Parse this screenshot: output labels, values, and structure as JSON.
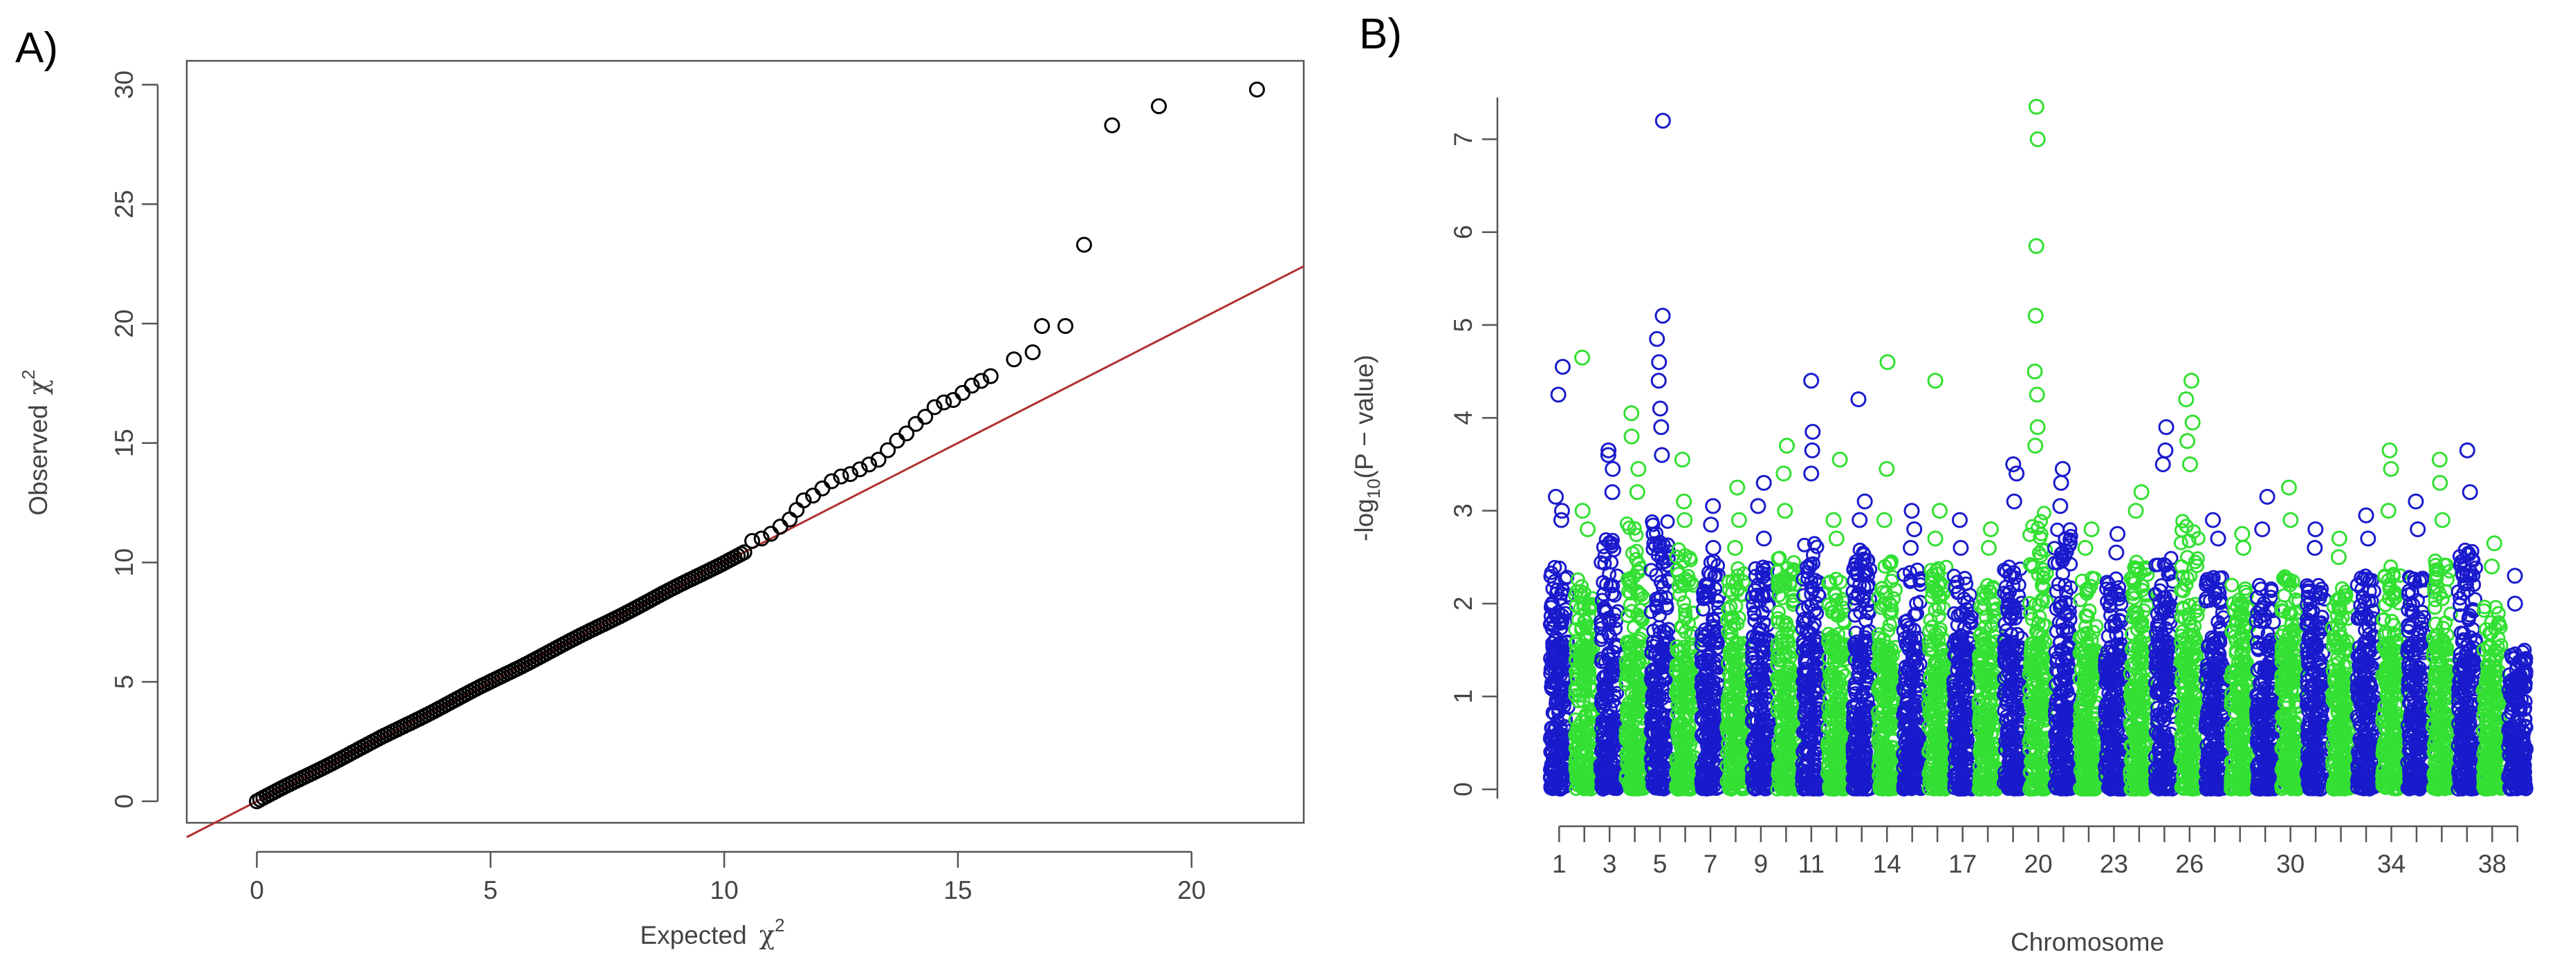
{
  "chart_data": [
    {
      "panel": "A)",
      "type": "scatter",
      "title": "",
      "xlabel": "Expected",
      "ylabel": "Observed",
      "symbol": "χ",
      "superscript": "2",
      "xlim": [
        -1.5,
        22.4
      ],
      "ylim": [
        -0.9,
        31.0
      ],
      "x_ticks": [
        0,
        5,
        10,
        15,
        20
      ],
      "y_ticks": [
        0,
        5,
        10,
        15,
        20,
        25,
        30
      ],
      "reference_line": {
        "slope": 1,
        "intercept": 0,
        "color": "#b03030"
      },
      "dense_range": [
        0,
        10.5
      ],
      "outliers": [
        [
          10.6,
          10.9
        ],
        [
          10.8,
          11.0
        ],
        [
          11.0,
          11.2
        ],
        [
          11.2,
          11.5
        ],
        [
          11.4,
          11.8
        ],
        [
          11.55,
          12.2
        ],
        [
          11.7,
          12.6
        ],
        [
          11.9,
          12.8
        ],
        [
          12.1,
          13.1
        ],
        [
          12.3,
          13.4
        ],
        [
          12.5,
          13.6
        ],
        [
          12.7,
          13.7
        ],
        [
          12.9,
          13.9
        ],
        [
          13.1,
          14.1
        ],
        [
          13.3,
          14.3
        ],
        [
          13.5,
          14.7
        ],
        [
          13.7,
          15.1
        ],
        [
          13.9,
          15.4
        ],
        [
          14.1,
          15.8
        ],
        [
          14.3,
          16.1
        ],
        [
          14.5,
          16.5
        ],
        [
          14.7,
          16.7
        ],
        [
          14.9,
          16.8
        ],
        [
          15.1,
          17.1
        ],
        [
          15.3,
          17.4
        ],
        [
          15.5,
          17.6
        ],
        [
          15.7,
          17.8
        ],
        [
          16.2,
          18.5
        ],
        [
          16.6,
          18.8
        ],
        [
          16.8,
          19.9
        ],
        [
          17.3,
          19.9
        ],
        [
          17.7,
          23.3
        ],
        [
          18.3,
          28.3
        ],
        [
          19.3,
          29.1
        ],
        [
          21.4,
          29.8
        ]
      ]
    },
    {
      "panel": "B)",
      "type": "scatter",
      "title": "",
      "xlabel": "Chromosome",
      "ylabel": "-log10(P - value)",
      "ylim": [
        -0.1,
        7.45
      ],
      "y_ticks": [
        0,
        1,
        2,
        3,
        4,
        5,
        6,
        7
      ],
      "x_tick_labels": [
        "1",
        "3",
        "5",
        "7",
        "9",
        "11",
        "14",
        "17",
        "20",
        "23",
        "26",
        "30",
        "34",
        "38"
      ],
      "x_tick_label_chromosomes": [
        1,
        3,
        5,
        7,
        9,
        11,
        14,
        17,
        20,
        23,
        26,
        30,
        34,
        38
      ],
      "series_colors": [
        "#1a1acd",
        "#33e033"
      ],
      "chromosomes": [
        {
          "chr": 1,
          "base": 2.5,
          "peaks": [
            4.55,
            4.25,
            3.15,
            3.0,
            2.9
          ]
        },
        {
          "chr": 2,
          "base": 2.3,
          "peaks": [
            4.65,
            3.0,
            2.8
          ]
        },
        {
          "chr": 3,
          "base": 2.7,
          "peaks": [
            3.65,
            3.6,
            3.45,
            3.2
          ]
        },
        {
          "chr": 4,
          "base": 2.9,
          "peaks": [
            4.05,
            3.8,
            3.45,
            3.2
          ]
        },
        {
          "chr": 5,
          "base": 3.0,
          "peaks": [
            7.2,
            5.1,
            4.85,
            4.6,
            4.4,
            4.1,
            3.9,
            3.6
          ]
        },
        {
          "chr": 6,
          "base": 2.6,
          "peaks": [
            3.55,
            3.1,
            2.9
          ]
        },
        {
          "chr": 7,
          "base": 2.5,
          "peaks": [
            3.05,
            2.85,
            2.6
          ]
        },
        {
          "chr": 8,
          "base": 2.4,
          "peaks": [
            3.25,
            2.9,
            2.6
          ]
        },
        {
          "chr": 9,
          "base": 2.4,
          "peaks": [
            3.3,
            3.05,
            2.7
          ]
        },
        {
          "chr": 10,
          "base": 2.5,
          "peaks": [
            3.7,
            3.4,
            3.0
          ]
        },
        {
          "chr": 11,
          "base": 2.7,
          "peaks": [
            4.4,
            3.85,
            3.65,
            3.4
          ]
        },
        {
          "chr": 12,
          "base": 2.3,
          "peaks": [
            3.55,
            2.9,
            2.7
          ]
        },
        {
          "chr": 13,
          "base": 2.6,
          "peaks": [
            4.2,
            3.1,
            2.9
          ]
        },
        {
          "chr": 14,
          "base": 2.5,
          "peaks": [
            4.6,
            3.45,
            2.9
          ]
        },
        {
          "chr": 15,
          "base": 2.4,
          "peaks": [
            3.0,
            2.8,
            2.6
          ]
        },
        {
          "chr": 16,
          "base": 2.4,
          "peaks": [
            4.4,
            3.0,
            2.7
          ]
        },
        {
          "chr": 17,
          "base": 2.3,
          "peaks": [
            2.9,
            2.6
          ]
        },
        {
          "chr": 18,
          "base": 2.2,
          "peaks": [
            2.8,
            2.6
          ]
        },
        {
          "chr": 19,
          "base": 2.4,
          "peaks": [
            3.5,
            3.4,
            3.1
          ]
        },
        {
          "chr": 20,
          "base": 3.0,
          "peaks": [
            7.35,
            7.0,
            5.85,
            5.1,
            4.5,
            4.25,
            3.9,
            3.7
          ]
        },
        {
          "chr": 21,
          "base": 2.8,
          "peaks": [
            3.45,
            3.3,
            3.05
          ]
        },
        {
          "chr": 22,
          "base": 2.3,
          "peaks": [
            2.8,
            2.6
          ]
        },
        {
          "chr": 23,
          "base": 2.3,
          "peaks": [
            2.75,
            2.55
          ]
        },
        {
          "chr": 24,
          "base": 2.5,
          "peaks": [
            3.2,
            3.0
          ]
        },
        {
          "chr": 25,
          "base": 2.6,
          "peaks": [
            3.9,
            3.65,
            3.5
          ]
        },
        {
          "chr": 26,
          "base": 2.9,
          "peaks": [
            4.4,
            4.2,
            3.95,
            3.75,
            3.5
          ]
        },
        {
          "chr": 27,
          "base": 2.3,
          "peaks": [
            2.9,
            2.7
          ]
        },
        {
          "chr": 28,
          "base": 2.3,
          "peaks": [
            2.75,
            2.6
          ]
        },
        {
          "chr": 29,
          "base": 2.2,
          "peaks": [
            3.15,
            2.8
          ]
        },
        {
          "chr": 30,
          "base": 2.3,
          "peaks": [
            3.25,
            2.9
          ]
        },
        {
          "chr": 31,
          "base": 2.2,
          "peaks": [
            2.8,
            2.6
          ]
        },
        {
          "chr": 32,
          "base": 2.2,
          "peaks": [
            2.7,
            2.5
          ]
        },
        {
          "chr": 33,
          "base": 2.3,
          "peaks": [
            2.95,
            2.7
          ]
        },
        {
          "chr": 34,
          "base": 2.4,
          "peaks": [
            3.65,
            3.45,
            3.0
          ]
        },
        {
          "chr": 35,
          "base": 2.3,
          "peaks": [
            3.1,
            2.8
          ]
        },
        {
          "chr": 36,
          "base": 2.5,
          "peaks": [
            3.55,
            3.3,
            2.9
          ]
        },
        {
          "chr": 37,
          "base": 2.6,
          "peaks": [
            3.65,
            3.2
          ]
        },
        {
          "chr": 38,
          "base": 2.0,
          "peaks": [
            2.65,
            2.4
          ]
        },
        {
          "chr": 39,
          "base": 1.5,
          "peaks": [
            2.3,
            2.0
          ]
        }
      ]
    }
  ]
}
